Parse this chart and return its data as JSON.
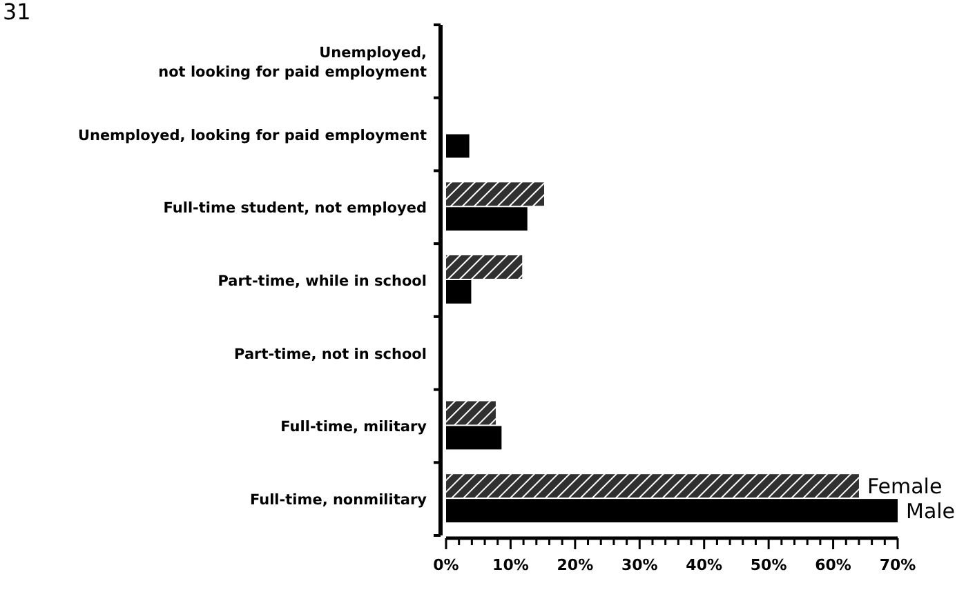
{
  "chart_data": {
    "type": "bar",
    "orientation": "horizontal",
    "categories": [
      "Unemployed,\nnot looking for paid employment",
      "Unemployed, looking for paid employment",
      "Full-time student, not employed",
      "Part-time, while in school",
      "Part-time, not in school",
      "Full-time, military",
      "Full-time, nonmilitary"
    ],
    "series": [
      {
        "name": "Female",
        "color": "#303030",
        "values": [
          0,
          0,
          15.2,
          11.8,
          0,
          7.7,
          64
        ]
      },
      {
        "name": "Male",
        "color": "#000000",
        "values": [
          0,
          3.6,
          12.6,
          3.9,
          0,
          8.6,
          70
        ]
      }
    ],
    "xlim": [
      0,
      70
    ],
    "xticks": [
      {
        "value": 0,
        "label": "0%"
      },
      {
        "value": 2,
        "label": null
      },
      {
        "value": 4,
        "label": null
      },
      {
        "value": 6,
        "label": null
      },
      {
        "value": 8,
        "label": null
      },
      {
        "value": 10,
        "label": "10%"
      },
      {
        "value": 12,
        "label": null
      },
      {
        "value": 14,
        "label": null
      },
      {
        "value": 16,
        "label": null
      },
      {
        "value": 18,
        "label": null
      },
      {
        "value": 20,
        "label": "20%"
      },
      {
        "value": 22,
        "label": null
      },
      {
        "value": 24,
        "label": null
      },
      {
        "value": 26,
        "label": null
      },
      {
        "value": 28,
        "label": null
      },
      {
        "value": 30,
        "label": "30%"
      },
      {
        "value": 32,
        "label": null
      },
      {
        "value": 34,
        "label": null
      },
      {
        "value": 36,
        "label": null
      },
      {
        "value": 38,
        "label": null
      },
      {
        "value": 40,
        "label": "40%"
      },
      {
        "value": 42,
        "label": null
      },
      {
        "value": 44,
        "label": null
      },
      {
        "value": 46,
        "label": null
      },
      {
        "value": 48,
        "label": null
      },
      {
        "value": 50,
        "label": "50%"
      },
      {
        "value": 52,
        "label": null
      },
      {
        "value": 54,
        "label": null
      },
      {
        "value": 56,
        "label": null
      },
      {
        "value": 58,
        "label": null
      },
      {
        "value": 60,
        "label": "60%"
      },
      {
        "value": 62,
        "label": null
      },
      {
        "value": 64,
        "label": null
      },
      {
        "value": 66,
        "label": null
      },
      {
        "value": 68,
        "label": null
      },
      {
        "value": 70,
        "label": "70%"
      }
    ],
    "annotations": [
      "31"
    ],
    "grid": false,
    "legend": false
  }
}
